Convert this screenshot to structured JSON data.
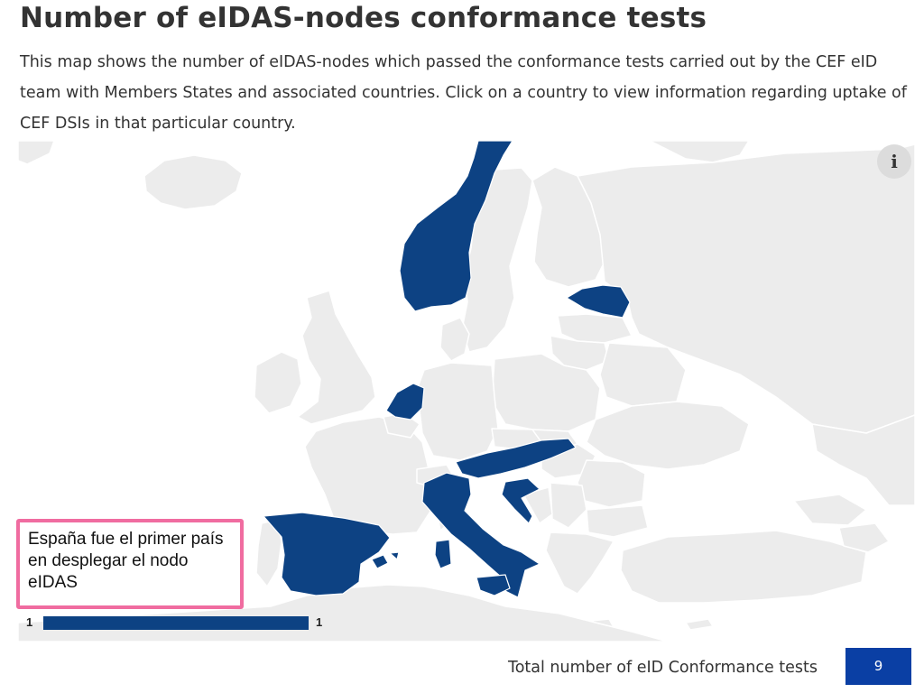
{
  "header": {
    "title": "Number of eIDAS-nodes conformance tests",
    "description": "This map shows the number of eIDAS-nodes which passed the conformance tests carried out by the CEF eID team with Members States and associated countries. Click on a country to view information regarding uptake of CEF DSIs in that particular country."
  },
  "map": {
    "info_button": "i",
    "highlighted_countries": [
      "Norway",
      "Estonia",
      "Netherlands",
      "Spain",
      "Italy",
      "Croatia",
      "Slovenia",
      "Austria"
    ],
    "highlight_color": "#0d4283",
    "land_color": "#ececec",
    "sea_color": "#ffffff"
  },
  "annotation": {
    "text": "España fue el primer país\nen  desplegar el nodo\neIDAS",
    "border_color": "#f06ca0"
  },
  "legend": {
    "min": "1",
    "max": "1",
    "bar_color": "#0d4283"
  },
  "total": {
    "label": "Total number of eID Conformance tests",
    "value": "9",
    "badge_color": "#0a3fa4"
  }
}
